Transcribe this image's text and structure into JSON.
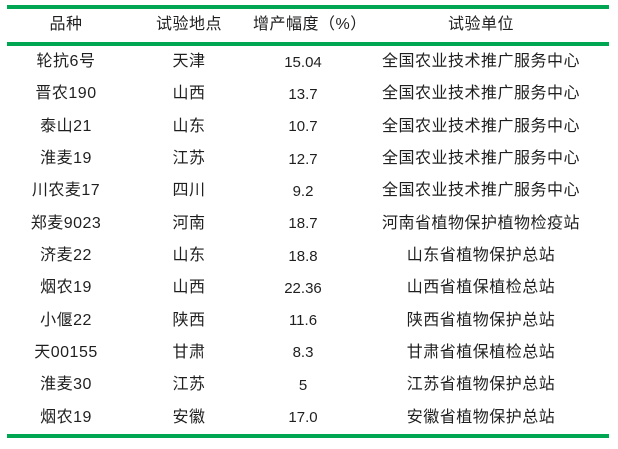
{
  "table": {
    "accent_color": "#00A651",
    "text_color": "#1f1f1f",
    "columns": [
      "品种",
      "试验地点",
      "增产幅度（%）",
      "试验单位"
    ],
    "rows": [
      [
        "轮抗6号",
        "天津",
        "15.04",
        "全国农业技术推广服务中心"
      ],
      [
        "晋农190",
        "山西",
        "13.7",
        "全国农业技术推广服务中心"
      ],
      [
        "泰山21",
        "山东",
        "10.7",
        "全国农业技术推广服务中心"
      ],
      [
        "淮麦19",
        "江苏",
        "12.7",
        "全国农业技术推广服务中心"
      ],
      [
        "川农麦17",
        "四川",
        "9.2",
        "全国农业技术推广服务中心"
      ],
      [
        "郑麦9023",
        "河南",
        "18.7",
        "河南省植物保护植物检疫站"
      ],
      [
        "济麦22",
        "山东",
        "18.8",
        "山东省植物保护总站"
      ],
      [
        "烟农19",
        "山西",
        "22.36",
        "山西省植保植检总站"
      ],
      [
        "小偃22",
        "陕西",
        "11.6",
        "陕西省植物保护总站"
      ],
      [
        "天00155",
        "甘肃",
        "8.3",
        "甘肃省植保植检总站"
      ],
      [
        "淮麦30",
        "江苏",
        "5",
        "江苏省植物保护总站"
      ],
      [
        "烟农19",
        "安徽",
        "17.0",
        "安徽省植物保护总站"
      ]
    ]
  }
}
